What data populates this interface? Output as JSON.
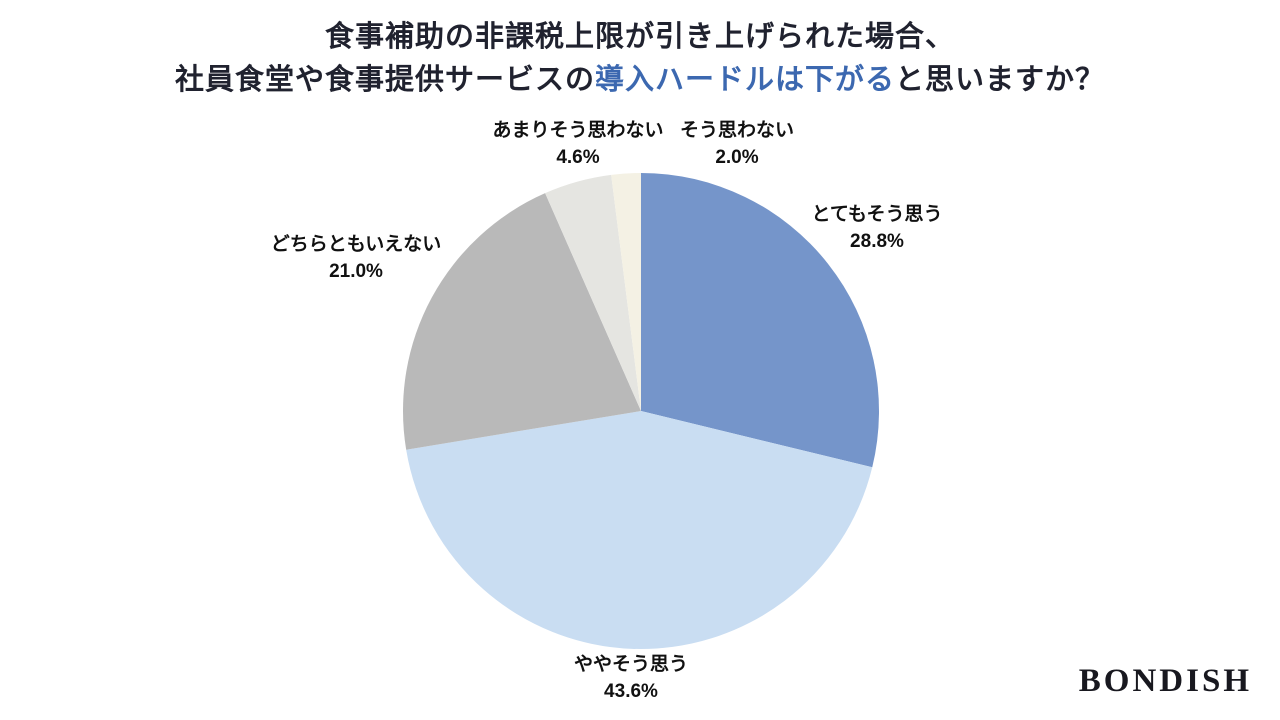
{
  "title": {
    "line1": "食事補助の非課税上限が引き上げられた場合、",
    "line2_prefix": "社員食堂や食事提供サービスの",
    "line2_highlight": "導入ハードルは下がる",
    "line2_suffix": "と思いますか？"
  },
  "colors": {
    "title_text": "#20222f",
    "title_highlight": "#3c68b0",
    "label_text": "#111111"
  },
  "chart_data": {
    "type": "pie",
    "start_angle_deg": -90,
    "direction": "clockwise",
    "legend_position": "outside-labels",
    "slices": [
      {
        "label": "とてもそう思う",
        "value": 28.8,
        "percent_label": "28.8%",
        "color": "#7595ca"
      },
      {
        "label": "ややそう思う",
        "value": 43.6,
        "percent_label": "43.6%",
        "color": "#c9ddf2"
      },
      {
        "label": "どちらともいえない",
        "value": 21.0,
        "percent_label": "21.0%",
        "color": "#b9b9b9"
      },
      {
        "label": "あまりそう思わない",
        "value": 4.6,
        "percent_label": "4.6%",
        "color": "#e5e5e1"
      },
      {
        "label": "そう思わない",
        "value": 2.0,
        "percent_label": "2.0%",
        "color": "#f4f1e4"
      }
    ]
  },
  "logo": {
    "text": "BONDISH"
  }
}
